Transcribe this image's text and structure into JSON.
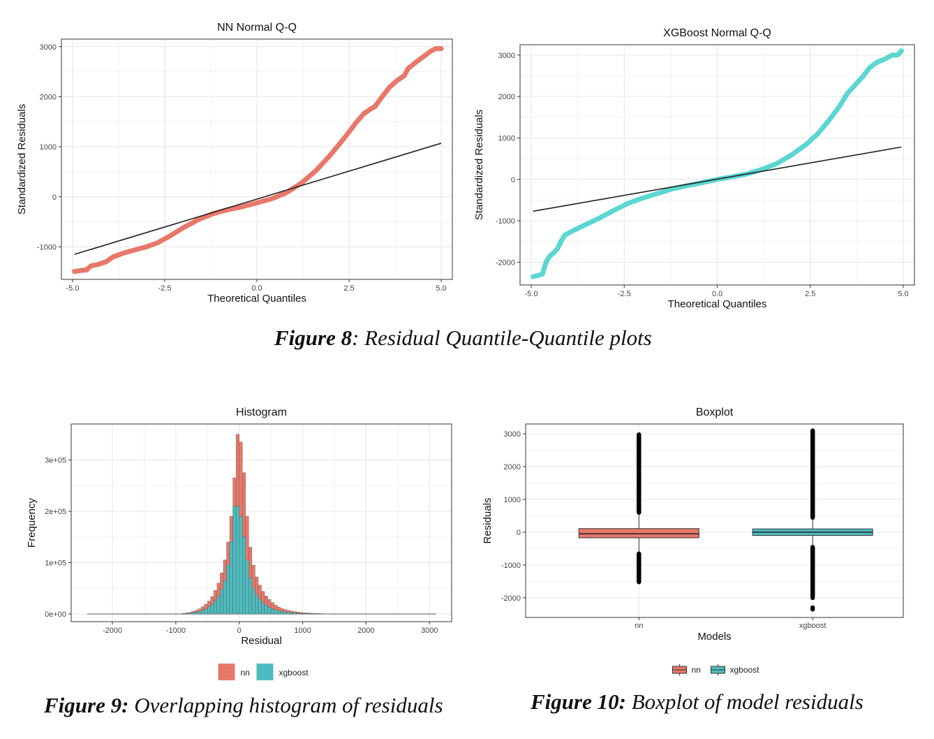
{
  "colors": {
    "nn": "#E8786A",
    "xgboost": "#5CD6D2",
    "xgboost_fill": "#4DBDC0",
    "line": "#222222",
    "grid": "#E6E6E6",
    "panel_border": "#333333"
  },
  "captions": {
    "fig8_label": "Figure 8",
    "fig8_text": ": Residual Quantile-Quantile plots",
    "fig9_label": "Figure 9:",
    "fig9_text": " Overlapping histogram of residuals",
    "fig10_label": "Figure 10:",
    "fig10_text": " Boxplot of model residuals"
  },
  "chart_data": [
    {
      "type": "scatter",
      "title": "NN Normal Q-Q",
      "xlabel": "Theoretical Quantiles",
      "ylabel": "Standardized Residuals",
      "xlim": [
        -5.0,
        5.0
      ],
      "ylim": [
        -1650,
        3150
      ],
      "xticks": [
        -5.0,
        -2.5,
        0.0,
        2.5,
        5.0
      ],
      "xtick_labels": [
        "-5.0",
        "-2.5",
        "0.0",
        "2.5",
        "5.0"
      ],
      "yticks": [
        -1000,
        0,
        1000,
        2000,
        3000
      ],
      "ytick_labels": [
        "-1000",
        "0",
        "1000",
        "2000",
        "3000"
      ],
      "grid": true,
      "series": [
        {
          "color": "#E8786A",
          "points": [
            [
              -4.95,
              -1490
            ],
            [
              -4.75,
              -1470
            ],
            [
              -4.62,
              -1460
            ],
            [
              -4.5,
              -1380
            ],
            [
              -4.3,
              -1350
            ],
            [
              -4.1,
              -1300
            ],
            [
              -3.9,
              -1200
            ],
            [
              -3.6,
              -1120
            ],
            [
              -3.3,
              -1060
            ],
            [
              -3.0,
              -1000
            ],
            [
              -2.7,
              -920
            ],
            [
              -2.4,
              -800
            ],
            [
              -2.0,
              -620
            ],
            [
              -1.6,
              -460
            ],
            [
              -1.2,
              -340
            ],
            [
              -0.8,
              -260
            ],
            [
              -0.4,
              -200
            ],
            [
              0.0,
              -120
            ],
            [
              0.4,
              -40
            ],
            [
              0.8,
              80
            ],
            [
              1.2,
              270
            ],
            [
              1.6,
              520
            ],
            [
              2.0,
              840
            ],
            [
              2.4,
              1200
            ],
            [
              2.7,
              1490
            ],
            [
              2.9,
              1660
            ],
            [
              3.1,
              1760
            ],
            [
              3.2,
              1800
            ],
            [
              3.4,
              2000
            ],
            [
              3.6,
              2190
            ],
            [
              3.8,
              2320
            ],
            [
              4.0,
              2420
            ],
            [
              4.1,
              2560
            ],
            [
              4.3,
              2680
            ],
            [
              4.5,
              2790
            ],
            [
              4.7,
              2900
            ],
            [
              4.85,
              2960
            ],
            [
              5.0,
              2960
            ]
          ]
        }
      ],
      "reference_line": [
        [
          -4.95,
          -1150
        ],
        [
          5.0,
          1070
        ]
      ]
    },
    {
      "type": "scatter",
      "title": "XGBoost Normal Q-Q",
      "xlabel": "Theoretical Quantiles",
      "ylabel": "Standardized Residuals",
      "xlim": [
        -5.0,
        5.0
      ],
      "ylim": [
        -2550,
        3250
      ],
      "xticks": [
        -5.0,
        -2.5,
        0.0,
        2.5,
        5.0
      ],
      "xtick_labels": [
        "-5.0",
        "-2.5",
        "0.0",
        "2.5",
        "5.0"
      ],
      "yticks": [
        -2000,
        -1000,
        0,
        1000,
        2000,
        3000
      ],
      "ytick_labels": [
        "-2000",
        "-1000",
        "0",
        "1000",
        "2000",
        "3000"
      ],
      "grid": true,
      "series": [
        {
          "color": "#5CD6D2",
          "points": [
            [
              -4.95,
              -2350
            ],
            [
              -4.7,
              -2290
            ],
            [
              -4.6,
              -2000
            ],
            [
              -4.5,
              -1850
            ],
            [
              -4.4,
              -1780
            ],
            [
              -4.3,
              -1680
            ],
            [
              -4.2,
              -1500
            ],
            [
              -4.1,
              -1350
            ],
            [
              -3.9,
              -1250
            ],
            [
              -3.6,
              -1120
            ],
            [
              -3.2,
              -950
            ],
            [
              -2.8,
              -760
            ],
            [
              -2.4,
              -580
            ],
            [
              -2.0,
              -450
            ],
            [
              -1.6,
              -340
            ],
            [
              -1.2,
              -230
            ],
            [
              -0.8,
              -150
            ],
            [
              -0.4,
              -80
            ],
            [
              0.0,
              0
            ],
            [
              0.4,
              60
            ],
            [
              0.8,
              130
            ],
            [
              1.2,
              240
            ],
            [
              1.6,
              380
            ],
            [
              2.0,
              590
            ],
            [
              2.4,
              850
            ],
            [
              2.7,
              1100
            ],
            [
              3.0,
              1420
            ],
            [
              3.3,
              1780
            ],
            [
              3.5,
              2080
            ],
            [
              3.7,
              2270
            ],
            [
              3.9,
              2470
            ],
            [
              4.1,
              2700
            ],
            [
              4.3,
              2830
            ],
            [
              4.5,
              2900
            ],
            [
              4.7,
              3000
            ],
            [
              4.85,
              3000
            ],
            [
              4.95,
              3100
            ]
          ]
        }
      ],
      "reference_line": [
        [
          -4.95,
          -770
        ],
        [
          4.95,
          780
        ]
      ]
    },
    {
      "type": "bar",
      "title": "Histogram",
      "xlabel": "Residual",
      "ylabel": "Frequency",
      "xlim": [
        -2650,
        3350
      ],
      "ylim": [
        -15000,
        370000
      ],
      "xticks": [
        -2000,
        -1000,
        0,
        1000,
        2000,
        3000
      ],
      "xtick_labels": [
        "-2000",
        "-1000",
        "0",
        "1000",
        "2000",
        "3000"
      ],
      "yticks": [
        0,
        100000,
        200000,
        300000
      ],
      "ytick_labels": [
        "0e+00",
        "1e+05",
        "2e+05",
        "3e+05"
      ],
      "grid": true,
      "bin_width": 50,
      "bin_starts": [
        -900,
        -850,
        -800,
        -750,
        -700,
        -650,
        -600,
        -550,
        -500,
        -450,
        -400,
        -350,
        -300,
        -250,
        -200,
        -150,
        -100,
        -50,
        0,
        50,
        100,
        150,
        200,
        250,
        300,
        350,
        400,
        450,
        500,
        550,
        600,
        650,
        700,
        750,
        800,
        850,
        900,
        950,
        1000,
        1050,
        1100,
        1150,
        1200,
        1250,
        1300,
        1350,
        1400,
        1450,
        1500,
        1550,
        1600,
        1650,
        1700,
        1750,
        1800,
        1850,
        1900
      ],
      "series": [
        {
          "name": "nn",
          "color": "#E8786A",
          "values": [
            1000,
            2000,
            3000,
            5000,
            7000,
            10000,
            14000,
            19000,
            25000,
            34000,
            46000,
            60000,
            80000,
            105000,
            140000,
            190000,
            265000,
            350000,
            335000,
            275000,
            190000,
            130000,
            95000,
            72000,
            56000,
            44000,
            35000,
            28000,
            22000,
            17000,
            13500,
            10500,
            8500,
            7000,
            5500,
            4500,
            3500,
            2800,
            2200,
            1800,
            1400,
            1100,
            900,
            700,
            500,
            400,
            300,
            250,
            200,
            150,
            120,
            100,
            80,
            60,
            40,
            30,
            20
          ]
        },
        {
          "name": "xgboost",
          "color": "#4DBDC0",
          "values": [
            500,
            1000,
            1500,
            2500,
            3500,
            5000,
            7000,
            10000,
            14000,
            19000,
            26000,
            35000,
            48000,
            65000,
            95000,
            140000,
            210000,
            210000,
            190000,
            150000,
            105000,
            70000,
            50000,
            38000,
            29000,
            22000,
            17000,
            13000,
            10000,
            8000,
            6000,
            4800,
            3800,
            3000,
            2400,
            1900,
            1500,
            1200,
            950,
            750,
            600,
            480,
            380,
            300,
            240,
            190,
            150,
            120,
            100,
            80,
            60,
            50,
            40,
            30,
            20,
            15,
            10
          ]
        }
      ],
      "legend": {
        "position": "bottom",
        "entries": [
          "nn",
          "xgboost"
        ]
      }
    },
    {
      "type": "boxplot",
      "title": "Boxplot",
      "xlabel": "Models",
      "ylabel": "Residuals",
      "ylim": [
        -2600,
        3300
      ],
      "yticks": [
        -2000,
        -1000,
        0,
        1000,
        2000,
        3000
      ],
      "ytick_labels": [
        "-2000",
        "-1000",
        "0",
        "1000",
        "2000",
        "3000"
      ],
      "categories": [
        "nn",
        "xgboost"
      ],
      "grid": true,
      "boxes": [
        {
          "name": "nn",
          "color": "#E8786A",
          "q1": -170,
          "median": -50,
          "q3": 110,
          "whisker_low": -600,
          "whisker_high": 550,
          "outlier_ranges": [
            [
              600,
              2980
            ],
            [
              -1520,
              -640
            ]
          ]
        },
        {
          "name": "xgboost",
          "color": "#4DBDC0",
          "q1": -100,
          "median": 0,
          "q3": 100,
          "whisker_low": -420,
          "whisker_high": 420,
          "outlier_ranges": [
            [
              450,
              3100
            ],
            [
              -1950,
              -450
            ]
          ],
          "outliers": [
            -2000,
            -2300,
            -2350
          ]
        }
      ],
      "legend": {
        "position": "bottom",
        "entries": [
          "nn",
          "xgboost"
        ]
      }
    }
  ]
}
